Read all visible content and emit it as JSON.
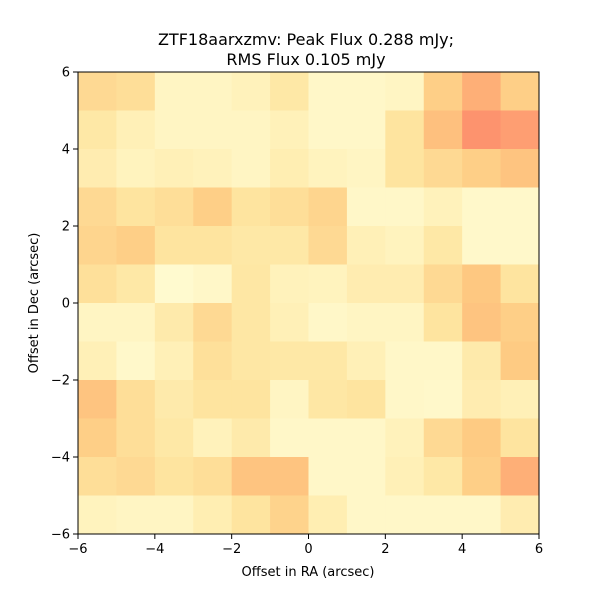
{
  "chart_data": {
    "type": "heatmap",
    "title_line1": "ZTF18aarxzmv: Peak Flux 0.288 mJy;",
    "title_line2": "RMS Flux 0.105 mJy",
    "xlabel": "Offset in RA (arcsec)",
    "ylabel": "Offset in Dec (arcsec)",
    "xlim": [
      -6,
      6
    ],
    "ylim": [
      -6,
      6
    ],
    "x_ticks": [
      -6,
      -4,
      -2,
      0,
      2,
      4,
      6
    ],
    "y_ticks": [
      -6,
      -4,
      -2,
      0,
      2,
      4,
      6
    ],
    "x_tick_labels": [
      "−6",
      "−4",
      "−2",
      "0",
      "2",
      "4",
      "6"
    ],
    "y_tick_labels": [
      "−6",
      "−4",
      "−2",
      "0",
      "2",
      "4",
      "6"
    ],
    "colormap": "YlOrRd",
    "vmin": 0,
    "vmax": 1,
    "grid": false,
    "colorbar": false,
    "rows_note": "values listed top row (Dec +6 to +5) first; columns from RA -6 to +6; relative intensity 0-1",
    "values": [
      [
        0.3,
        0.28,
        0.1,
        0.1,
        0.13,
        0.22,
        0.08,
        0.08,
        0.1,
        0.35,
        0.5,
        0.35
      ],
      [
        0.22,
        0.15,
        0.1,
        0.1,
        0.1,
        0.14,
        0.08,
        0.08,
        0.25,
        0.42,
        0.58,
        0.55
      ],
      [
        0.18,
        0.12,
        0.15,
        0.13,
        0.1,
        0.17,
        0.12,
        0.1,
        0.25,
        0.3,
        0.35,
        0.4
      ],
      [
        0.3,
        0.25,
        0.28,
        0.35,
        0.25,
        0.28,
        0.32,
        0.08,
        0.08,
        0.13,
        0.07,
        0.07
      ],
      [
        0.32,
        0.35,
        0.25,
        0.25,
        0.22,
        0.22,
        0.3,
        0.15,
        0.12,
        0.22,
        0.07,
        0.07
      ],
      [
        0.27,
        0.22,
        0.05,
        0.08,
        0.23,
        0.13,
        0.12,
        0.18,
        0.18,
        0.3,
        0.38,
        0.25
      ],
      [
        0.1,
        0.1,
        0.2,
        0.3,
        0.23,
        0.15,
        0.08,
        0.1,
        0.1,
        0.25,
        0.4,
        0.35
      ],
      [
        0.15,
        0.07,
        0.15,
        0.27,
        0.23,
        0.22,
        0.22,
        0.15,
        0.08,
        0.08,
        0.2,
        0.37
      ],
      [
        0.4,
        0.28,
        0.2,
        0.25,
        0.25,
        0.1,
        0.23,
        0.25,
        0.08,
        0.07,
        0.18,
        0.15
      ],
      [
        0.35,
        0.28,
        0.22,
        0.13,
        0.2,
        0.08,
        0.08,
        0.08,
        0.13,
        0.3,
        0.37,
        0.25
      ],
      [
        0.28,
        0.3,
        0.25,
        0.28,
        0.4,
        0.4,
        0.08,
        0.08,
        0.15,
        0.22,
        0.35,
        0.5
      ],
      [
        0.12,
        0.1,
        0.1,
        0.17,
        0.25,
        0.33,
        0.17,
        0.08,
        0.08,
        0.08,
        0.08,
        0.18
      ]
    ]
  }
}
